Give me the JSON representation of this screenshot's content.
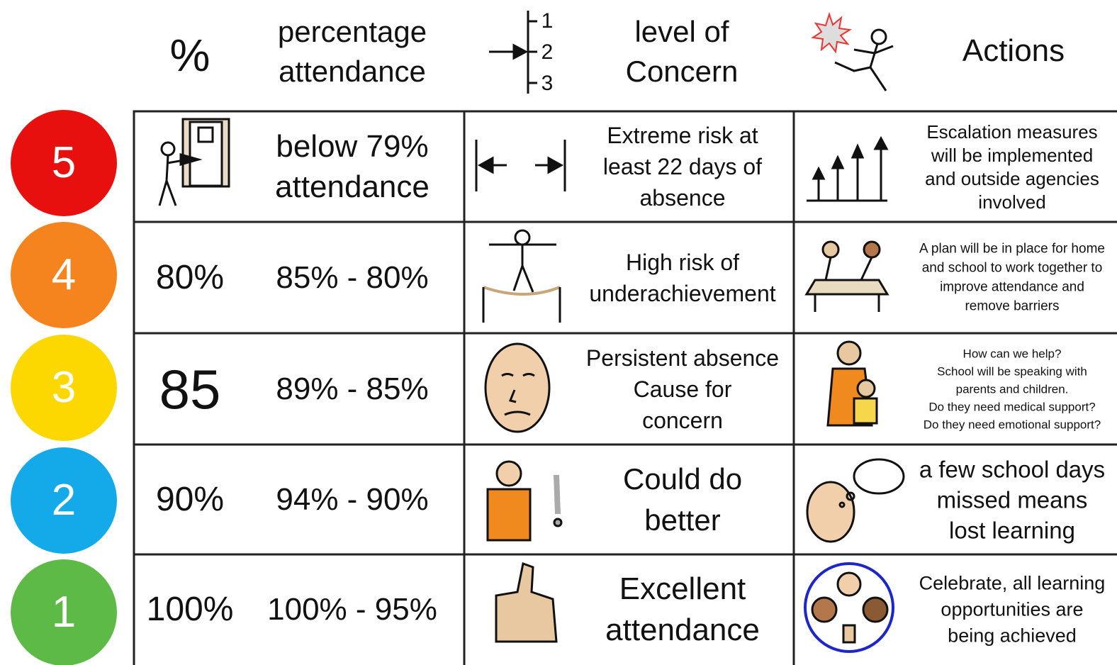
{
  "header": {
    "percent_symbol": "%",
    "attendance_heading": [
      "percentage",
      "attendance"
    ],
    "scale_labels": [
      "1",
      "2",
      "3"
    ],
    "concern_heading": [
      "level of",
      "Concern"
    ],
    "actions_heading": "Actions"
  },
  "rows": [
    {
      "level": "5",
      "range": [
        "below 79%",
        "attendance"
      ],
      "concern": [
        "Extreme risk at",
        "least 22 days of",
        "absence"
      ],
      "action": [
        "Escalation measures",
        "will be implemented",
        "and outside agencies",
        "involved"
      ]
    },
    {
      "level": "4",
      "figure": "80%",
      "range": [
        "85% - 80%"
      ],
      "concern": [
        "High risk of",
        "underachievement"
      ],
      "action": [
        "A plan will be in place for home",
        "and school to work together to",
        "improve attendance and",
        "remove barriers"
      ]
    },
    {
      "level": "3",
      "figure": "85",
      "range": [
        "89% - 85%"
      ],
      "concern": [
        "Persistent absence",
        "Cause for",
        "concern"
      ],
      "action": [
        "How can we help?",
        "School will be speaking with",
        "parents and children.",
        "Do they need medical support?",
        "Do they need emotional support?"
      ]
    },
    {
      "level": "2",
      "figure": "90%",
      "range": [
        "94% - 90%"
      ],
      "concern": [
        "Could do",
        "better"
      ],
      "action": [
        "a few school days",
        "missed means",
        "lost learning"
      ]
    },
    {
      "level": "1",
      "figure": "100%",
      "range": [
        "100% - 95%"
      ],
      "concern": [
        "Excellent",
        "attendance"
      ],
      "action": [
        "Celebrate, all learning",
        "opportunities are",
        "being achieved"
      ]
    }
  ]
}
